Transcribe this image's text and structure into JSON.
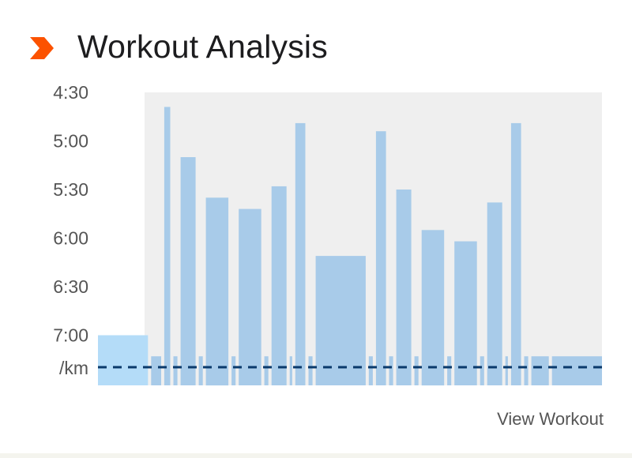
{
  "header": {
    "title": "Workout Analysis",
    "icon": "chevron-right-icon",
    "icon_color": "#fc5200"
  },
  "footer": {
    "link_label": "View Workout"
  },
  "colors": {
    "bar": "#a8cbe9",
    "first_bar": "#b4dcf8",
    "plot_bg": "#efefef",
    "target_line": "#0a3a6b"
  },
  "chart_data": {
    "type": "bar",
    "title": "",
    "xlabel": "",
    "ylabel": "/km",
    "y_unit_label": "/km",
    "y_axis_inverted": true,
    "y_ticks": [
      "4:30",
      "5:00",
      "5:30",
      "6:00",
      "6:30",
      "7:00"
    ],
    "ylim_seconds_per_km": [
      270,
      450
    ],
    "grid": false,
    "target_pace_line": "dashed",
    "bars": [
      {
        "pace": "7:00",
        "distance": 1.0
      },
      {
        "pace": "7:13",
        "distance": 0.2
      },
      {
        "pace": "4:39",
        "distance": 0.12
      },
      {
        "pace": "7:13",
        "distance": 0.08
      },
      {
        "pace": "5:10",
        "distance": 0.3
      },
      {
        "pace": "7:13",
        "distance": 0.08
      },
      {
        "pace": "5:35",
        "distance": 0.45
      },
      {
        "pace": "7:13",
        "distance": 0.08
      },
      {
        "pace": "5:42",
        "distance": 0.45
      },
      {
        "pace": "7:13",
        "distance": 0.08
      },
      {
        "pace": "5:28",
        "distance": 0.3
      },
      {
        "pace": "7:13",
        "distance": 0.05
      },
      {
        "pace": "4:49",
        "distance": 0.2
      },
      {
        "pace": "7:13",
        "distance": 0.08
      },
      {
        "pace": "6:11",
        "distance": 1.0
      },
      {
        "pace": "7:13",
        "distance": 0.08
      },
      {
        "pace": "4:54",
        "distance": 0.2
      },
      {
        "pace": "7:13",
        "distance": 0.08
      },
      {
        "pace": "5:30",
        "distance": 0.3
      },
      {
        "pace": "7:13",
        "distance": 0.08
      },
      {
        "pace": "5:55",
        "distance": 0.45
      },
      {
        "pace": "7:13",
        "distance": 0.08
      },
      {
        "pace": "6:02",
        "distance": 0.45
      },
      {
        "pace": "7:13",
        "distance": 0.08
      },
      {
        "pace": "5:38",
        "distance": 0.3
      },
      {
        "pace": "7:13",
        "distance": 0.05
      },
      {
        "pace": "4:49",
        "distance": 0.2
      },
      {
        "pace": "7:13",
        "distance": 0.08
      },
      {
        "pace": "7:13",
        "distance": 0.35
      },
      {
        "pace": "7:13",
        "distance": 1.0
      }
    ]
  }
}
